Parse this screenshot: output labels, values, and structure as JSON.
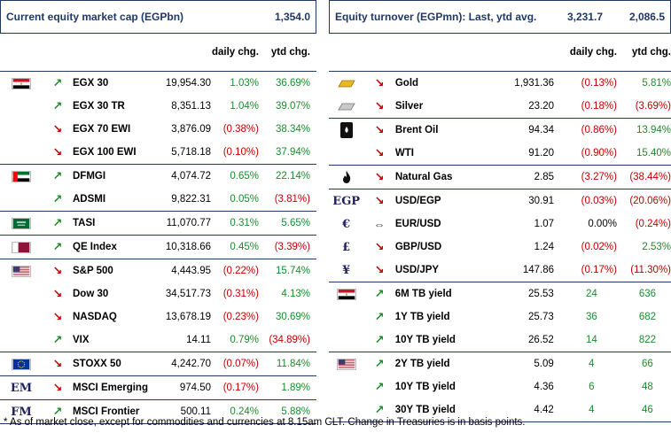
{
  "left": {
    "header": {
      "title": "Current equity market cap (EGPbn)",
      "value": "1,354.0"
    },
    "columns": {
      "daily": "daily chg.",
      "ytd": "ytd chg."
    },
    "groups": [
      {
        "flag": "egypt-flag-icon",
        "rows": [
          {
            "arrow": "up",
            "name": "EGX 30",
            "value": "19,954.30",
            "daily": "1.03%",
            "ytd": "36.69%",
            "dsign": "pos",
            "ysign": "pos"
          },
          {
            "arrow": "up",
            "name": "EGX 30 TR",
            "value": "8,351.13",
            "daily": "1.04%",
            "ytd": "39.07%",
            "dsign": "pos",
            "ysign": "pos"
          },
          {
            "arrow": "down",
            "name": "EGX 70 EWI",
            "value": "3,876.09",
            "daily": "(0.38%)",
            "ytd": "38.34%",
            "dsign": "neg",
            "ysign": "pos"
          },
          {
            "arrow": "down",
            "name": "EGX 100 EWI",
            "value": "5,718.18",
            "daily": "(0.10%)",
            "ytd": "37.94%",
            "dsign": "neg",
            "ysign": "pos"
          }
        ]
      },
      {
        "flag": "uae-flag-icon",
        "rows": [
          {
            "arrow": "up",
            "name": "DFMGI",
            "value": "4,074.72",
            "daily": "0.65%",
            "ytd": "22.14%",
            "dsign": "pos",
            "ysign": "pos"
          },
          {
            "arrow": "up",
            "name": "ADSMI",
            "value": "9,822.31",
            "daily": "0.05%",
            "ytd": "(3.81%)",
            "dsign": "pos",
            "ysign": "neg"
          }
        ]
      },
      {
        "flag": "saudi-flag-icon",
        "rows": [
          {
            "arrow": "up",
            "name": "TASI",
            "value": "11,070.77",
            "daily": "0.31%",
            "ytd": "5.65%",
            "dsign": "pos",
            "ysign": "pos"
          }
        ]
      },
      {
        "flag": "qatar-flag-icon",
        "rows": [
          {
            "arrow": "up",
            "name": "QE Index",
            "value": "10,318.66",
            "daily": "0.45%",
            "ytd": "(3.39%)",
            "dsign": "pos",
            "ysign": "neg"
          }
        ]
      },
      {
        "flag": "us-flag-icon",
        "rows": [
          {
            "arrow": "down",
            "name": "S&P 500",
            "value": "4,443.95",
            "daily": "(0.22%)",
            "ytd": "15.74%",
            "dsign": "neg",
            "ysign": "pos"
          },
          {
            "arrow": "down",
            "name": "Dow 30",
            "value": "34,517.73",
            "daily": "(0.31%)",
            "ytd": "4.13%",
            "dsign": "neg",
            "ysign": "pos"
          },
          {
            "arrow": "down",
            "name": "NASDAQ",
            "value": "13,678.19",
            "daily": "(0.23%)",
            "ytd": "30.69%",
            "dsign": "neg",
            "ysign": "pos"
          },
          {
            "arrow": "up",
            "name": "VIX",
            "value": "14.11",
            "daily": "0.79%",
            "ytd": "(34.89%)",
            "dsign": "pos",
            "ysign": "neg"
          }
        ]
      },
      {
        "flag": "eu-flag-icon",
        "rows": [
          {
            "arrow": "down",
            "name": "STOXX 50",
            "value": "4,242.70",
            "daily": "(0.07%)",
            "ytd": "11.84%",
            "dsign": "neg",
            "ysign": "pos"
          }
        ]
      },
      {
        "flag": "text:EM",
        "rows": [
          {
            "arrow": "down",
            "name": "MSCI Emerging",
            "value": "974.50",
            "daily": "(0.17%)",
            "ytd": "1.89%",
            "dsign": "neg",
            "ysign": "pos"
          }
        ]
      },
      {
        "flag": "text:FM",
        "rows": [
          {
            "arrow": "up",
            "name": "MSCI Frontier",
            "value": "500.11",
            "daily": "0.24%",
            "ytd": "5.88%",
            "dsign": "pos",
            "ysign": "pos"
          }
        ]
      }
    ]
  },
  "right": {
    "header": {
      "title": "Equity turnover (EGPmn): Last, ytd avg.",
      "value1": "3,231.7",
      "value2": "2,086.5"
    },
    "columns": {
      "daily": "daily chg.",
      "ytd": "ytd chg."
    },
    "groups": [
      {
        "rows": [
          {
            "icon": "gold-bar-icon",
            "arrow": "down",
            "name": "Gold",
            "value": "1,931.36",
            "daily": "(0.13%)",
            "ytd": "5.81%",
            "dsign": "neg",
            "ysign": "pos"
          },
          {
            "icon": "silver-bar-icon",
            "arrow": "down",
            "name": "Silver",
            "value": "23.20",
            "daily": "(0.18%)",
            "ytd": "(3.69%)",
            "dsign": "neg",
            "ysign": "neg"
          }
        ]
      },
      {
        "rows": [
          {
            "icon": "oil-barrel-icon",
            "arrow": "down",
            "name": "Brent Oil",
            "value": "94.34",
            "daily": "(0.86%)",
            "ytd": "13.94%",
            "dsign": "neg",
            "ysign": "pos"
          },
          {
            "icon": "",
            "arrow": "down",
            "name": "WTI",
            "value": "91.20",
            "daily": "(0.90%)",
            "ytd": "15.40%",
            "dsign": "neg",
            "ysign": "pos"
          }
        ]
      },
      {
        "rows": [
          {
            "icon": "flame-icon",
            "arrow": "down",
            "name": "Natural Gas",
            "value": "2.85",
            "daily": "(3.27%)",
            "ytd": "(38.44%)",
            "dsign": "neg",
            "ysign": "neg"
          }
        ]
      },
      {
        "rows": [
          {
            "icon": "text:EGP",
            "arrow": "down",
            "name": "USD/EGP",
            "value": "30.91",
            "daily": "(0.03%)",
            "ytd": "(20.06%)",
            "dsign": "neg",
            "ysign": "neg"
          },
          {
            "icon": "text:€",
            "arrow": "flat",
            "name": "EUR/USD",
            "value": "1.07",
            "daily": "0.00%",
            "ytd": "(0.24%)",
            "dsign": "zero",
            "ysign": "neg"
          },
          {
            "icon": "text:£",
            "arrow": "down",
            "name": "GBP/USD",
            "value": "1.24",
            "daily": "(0.02%)",
            "ytd": "2.53%",
            "dsign": "neg",
            "ysign": "pos"
          },
          {
            "icon": "text:¥",
            "arrow": "down",
            "name": "USD/JPY",
            "value": "147.86",
            "daily": "(0.17%)",
            "ytd": "(11.30%)",
            "dsign": "neg",
            "ysign": "neg"
          }
        ]
      },
      {
        "bps": true,
        "rows": [
          {
            "icon": "egypt-flag-icon",
            "arrow": "up",
            "name": "6M TB yield",
            "value": "25.53",
            "daily": "24",
            "ytd": "636",
            "dsign": "pos",
            "ysign": "pos"
          },
          {
            "icon": "",
            "arrow": "up",
            "name": "1Y TB yield",
            "value": "25.73",
            "daily": "36",
            "ytd": "682",
            "dsign": "pos",
            "ysign": "pos"
          },
          {
            "icon": "",
            "arrow": "up",
            "name": "10Y TB yield",
            "value": "26.52",
            "daily": "14",
            "ytd": "822",
            "dsign": "pos",
            "ysign": "pos"
          }
        ]
      },
      {
        "bps": true,
        "rows": [
          {
            "icon": "us-flag-icon",
            "arrow": "up",
            "name": "2Y TB yield",
            "value": "5.09",
            "daily": "4",
            "ytd": "66",
            "dsign": "pos",
            "ysign": "pos"
          },
          {
            "icon": "",
            "arrow": "up",
            "name": "10Y TB yield",
            "value": "4.36",
            "daily": "6",
            "ytd": "48",
            "dsign": "pos",
            "ysign": "pos"
          },
          {
            "icon": "",
            "arrow": "up",
            "name": "30Y TB yield",
            "value": "4.42",
            "daily": "4",
            "ytd": "46",
            "dsign": "pos",
            "ysign": "pos"
          }
        ]
      }
    ]
  },
  "footnote": "* As of market close, except for commodities and currencies at 8.15am CLT. Change in Treasuries is in basis points."
}
